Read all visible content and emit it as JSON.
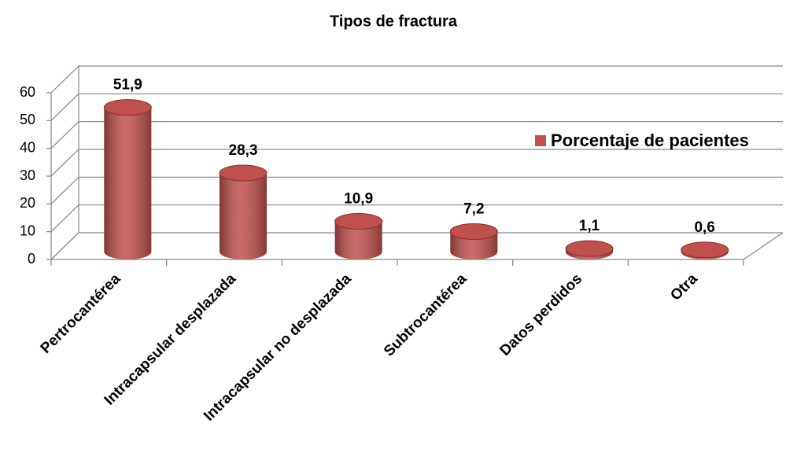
{
  "chart_data": {
    "type": "bar",
    "title": "Tipos de fractura",
    "categories": [
      "Pertrocantérea",
      "Intracapsular desplazada",
      "Intracapsular no desplazada",
      "Subtrocantérea",
      "Datos perdidos",
      "Otra"
    ],
    "series": [
      {
        "name": "Porcentaje de pacientes",
        "color": "#c0504d",
        "values": [
          51.9,
          28.3,
          10.9,
          7.2,
          1.1,
          0.6
        ],
        "value_labels": [
          "51,9",
          "28,3",
          "10,9",
          "7,2",
          "1,1",
          "0,6"
        ]
      }
    ],
    "ylim": [
      0,
      60
    ],
    "yticks": [
      0,
      10,
      20,
      30,
      40,
      50,
      60
    ],
    "grid": true,
    "legend": "right"
  }
}
